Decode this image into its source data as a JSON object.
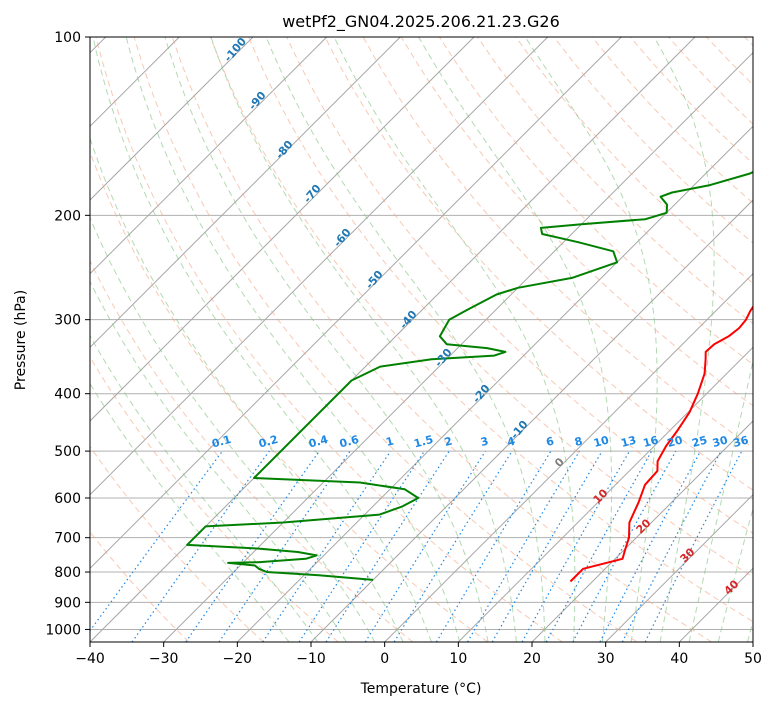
{
  "chart_data": {
    "type": "line",
    "title": "wetPf2_GN04.2025.206.21.23.G26",
    "xlabel": "Temperature (°C)",
    "ylabel": "Pressure (hPa)",
    "xlim": [
      -40,
      50
    ],
    "ylim_pressure": [
      1050,
      100
    ],
    "log_pressure_axis": true,
    "grid": true,
    "x_ticks": [
      "−40",
      "−30",
      "−20",
      "−10",
      "0",
      "10",
      "20",
      "30",
      "40",
      "50"
    ],
    "y_ticks": [
      "100",
      "200",
      "300",
      "400",
      "500",
      "600",
      "700",
      "800",
      "900",
      "1000"
    ],
    "series": [
      {
        "color": "#ff0000",
        "points": [
          [
            17,
            830
          ],
          [
            17,
            790
          ],
          [
            21,
            760
          ],
          [
            20,
            730
          ],
          [
            19,
            700
          ],
          [
            17,
            660
          ],
          [
            15.5,
            610
          ],
          [
            14,
            570
          ],
          [
            13.8,
            540
          ],
          [
            12.5,
            520
          ],
          [
            11.6,
            490
          ],
          [
            11,
            460
          ],
          [
            10.2,
            430
          ],
          [
            8.8,
            400
          ],
          [
            7,
            370
          ],
          [
            5.2,
            350
          ],
          [
            4.2,
            340
          ],
          [
            4.3,
            330
          ],
          [
            5.2,
            320
          ],
          [
            5.5,
            310
          ],
          [
            5.3,
            300
          ],
          [
            4.7,
            290
          ],
          [
            4.3,
            280
          ],
          [
            4.8,
            260
          ],
          [
            5.8,
            240
          ],
          [
            6.6,
            220
          ],
          [
            7.8,
            200
          ],
          [
            8.8,
            185
          ],
          [
            9.5,
            175
          ],
          [
            9.3,
            168
          ],
          [
            8,
            158
          ],
          [
            7.6,
            150
          ],
          [
            7.5,
            140
          ],
          [
            7.7,
            130
          ],
          [
            8.4,
            120
          ],
          [
            9.6,
            112
          ],
          [
            11.4,
            105
          ],
          [
            13.3,
            100
          ]
        ]
      },
      {
        "color": "#008000",
        "points": [
          [
            -10,
            825
          ],
          [
            -18,
            810
          ],
          [
            -25.5,
            800
          ],
          [
            -27,
            790
          ],
          [
            -28,
            780
          ],
          [
            -32,
            772
          ],
          [
            -28,
            770
          ],
          [
            -22,
            760
          ],
          [
            -21,
            750
          ],
          [
            -24,
            740
          ],
          [
            -30,
            730
          ],
          [
            -40,
            720
          ],
          [
            -40,
            670
          ],
          [
            -30,
            660
          ],
          [
            -18,
            640
          ],
          [
            -16,
            620
          ],
          [
            -15,
            600
          ],
          [
            -18,
            580
          ],
          [
            -25,
            565
          ],
          [
            -40,
            555
          ],
          [
            -40,
            380
          ],
          [
            -38,
            360
          ],
          [
            -32,
            350
          ],
          [
            -24,
            345
          ],
          [
            -23,
            340
          ],
          [
            -26,
            335
          ],
          [
            -32,
            330
          ],
          [
            -34,
            320
          ],
          [
            -35,
            300
          ],
          [
            -34,
            290
          ],
          [
            -32,
            272
          ],
          [
            -30,
            265
          ],
          [
            -24,
            255
          ],
          [
            -20,
            240
          ],
          [
            -22,
            230
          ],
          [
            -28,
            222
          ],
          [
            -34,
            215
          ],
          [
            -35,
            210
          ],
          [
            -30,
            207
          ],
          [
            -22,
            203
          ],
          [
            -20,
            198
          ],
          [
            -21,
            192
          ],
          [
            -23,
            186
          ],
          [
            -22,
            183
          ],
          [
            -18,
            178
          ],
          [
            -14,
            170
          ],
          [
            -12,
            160
          ],
          [
            -11,
            150
          ],
          [
            -9,
            140
          ],
          [
            -5,
            125
          ],
          [
            -1,
            115
          ],
          [
            0.5,
            108
          ],
          [
            1,
            100
          ]
        ]
      }
    ],
    "annotations": {
      "isotherm_color": "#808080",
      "dry_adiabat_color": "#f4a582",
      "moist_adiabat_color": "#80c080",
      "mixing_ratio_color": "#1e88e5",
      "label_color_blue": "#1f77b4",
      "label_color_red": "#d62728",
      "moist_labels": [
        "-100",
        "-90",
        "-80",
        "-70",
        "-60",
        "-50",
        "-40",
        "-30",
        "-20",
        "-10"
      ],
      "dry_labels": [
        "0",
        "10",
        "20",
        "30",
        "40"
      ],
      "mixing_labels": [
        "0.1",
        "0.2",
        "0.4",
        "0.6",
        "1",
        "1.5",
        "2",
        "3",
        "4",
        "6",
        "8",
        "10",
        "13",
        "16",
        "20",
        "25",
        "30",
        "36"
      ]
    }
  }
}
